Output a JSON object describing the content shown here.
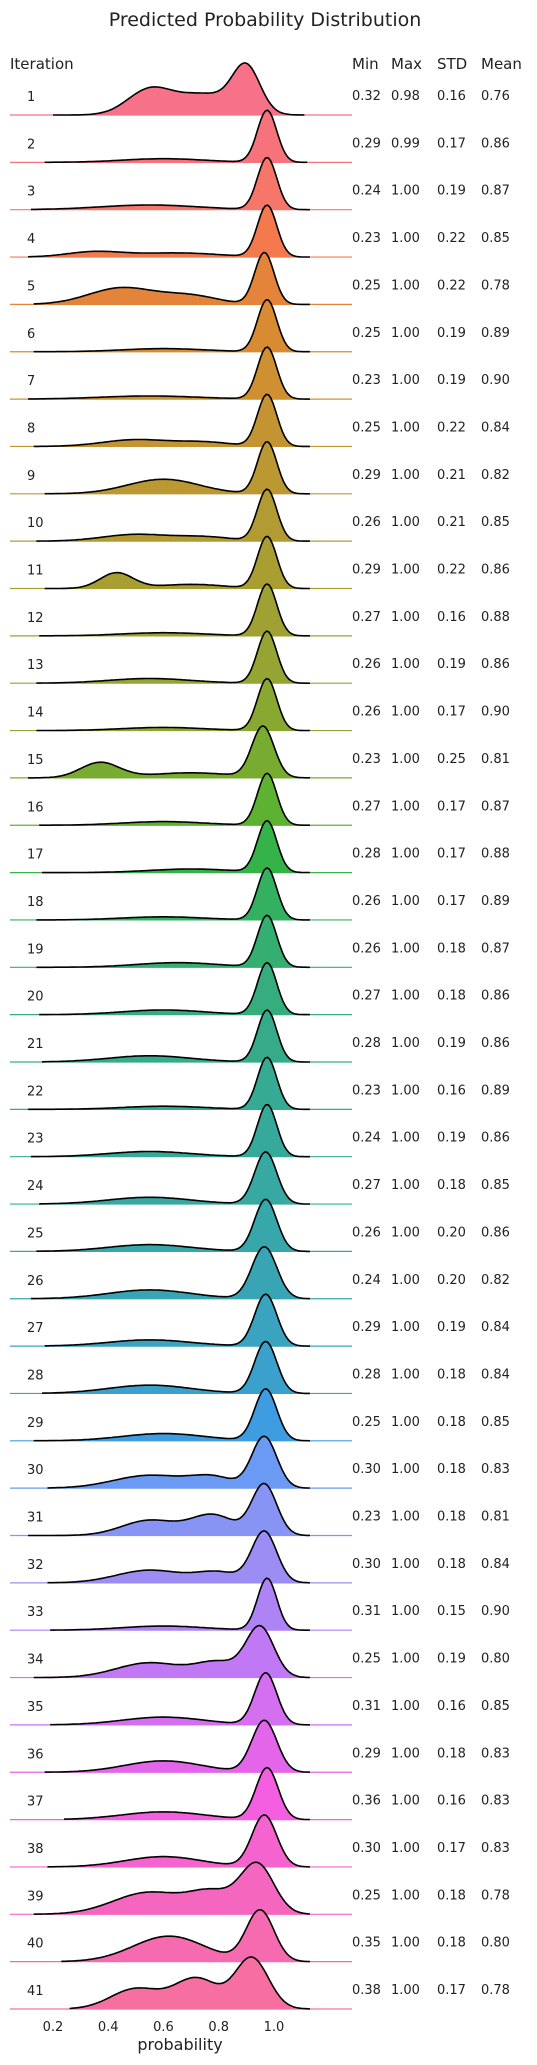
{
  "chart_data": {
    "type": "ridgeline",
    "title": "Predicted Probability Distribution",
    "xlabel": "probability",
    "xlim": [
      0.1,
      1.2
    ],
    "xticks": [
      "0.2",
      "0.4",
      "0.6",
      "0.8",
      "1.0"
    ],
    "xtick_values": [
      0.2,
      0.4,
      0.6,
      0.8,
      1.0
    ],
    "grid": false,
    "row_header": "Iteration",
    "stat_headers": [
      "Min",
      "Max",
      "STD",
      "Mean"
    ],
    "series": [
      {
        "label": "1",
        "color": "#f77189",
        "stats": [
          "0.32",
          "0.98",
          "0.16",
          "0.76"
        ]
      },
      {
        "label": "2",
        "color": "#f7737c",
        "stats": [
          "0.29",
          "0.99",
          "0.17",
          "0.86"
        ]
      },
      {
        "label": "3",
        "color": "#f7766a",
        "stats": [
          "0.24",
          "1.00",
          "0.19",
          "0.87"
        ]
      },
      {
        "label": "4",
        "color": "#f47a4e",
        "stats": [
          "0.23",
          "1.00",
          "0.22",
          "0.85"
        ]
      },
      {
        "label": "5",
        "color": "#e4843a",
        "stats": [
          "0.25",
          "1.00",
          "0.22",
          "0.78"
        ]
      },
      {
        "label": "6",
        "color": "#d98b33",
        "stats": [
          "0.25",
          "1.00",
          "0.19",
          "0.89"
        ]
      },
      {
        "label": "7",
        "color": "#cf9032",
        "stats": [
          "0.23",
          "1.00",
          "0.19",
          "0.90"
        ]
      },
      {
        "label": "8",
        "color": "#c59432",
        "stats": [
          "0.25",
          "1.00",
          "0.22",
          "0.84"
        ]
      },
      {
        "label": "9",
        "color": "#bb9832",
        "stats": [
          "0.29",
          "1.00",
          "0.21",
          "0.82"
        ]
      },
      {
        "label": "10",
        "color": "#b29b32",
        "stats": [
          "0.26",
          "1.00",
          "0.21",
          "0.85"
        ]
      },
      {
        "label": "11",
        "color": "#a99e32",
        "stats": [
          "0.29",
          "1.00",
          "0.22",
          "0.86"
        ]
      },
      {
        "label": "12",
        "color": "#9fa132",
        "stats": [
          "0.27",
          "1.00",
          "0.16",
          "0.88"
        ]
      },
      {
        "label": "13",
        "color": "#95a432",
        "stats": [
          "0.26",
          "1.00",
          "0.19",
          "0.86"
        ]
      },
      {
        "label": "14",
        "color": "#89a832",
        "stats": [
          "0.26",
          "1.00",
          "0.17",
          "0.90"
        ]
      },
      {
        "label": "15",
        "color": "#78ac31",
        "stats": [
          "0.23",
          "1.00",
          "0.25",
          "0.81"
        ]
      },
      {
        "label": "16",
        "color": "#5db232",
        "stats": [
          "0.27",
          "1.00",
          "0.17",
          "0.87"
        ]
      },
      {
        "label": "17",
        "color": "#35b248",
        "stats": [
          "0.28",
          "1.00",
          "0.17",
          "0.88"
        ]
      },
      {
        "label": "18",
        "color": "#34b061",
        "stats": [
          "0.26",
          "1.00",
          "0.17",
          "0.89"
        ]
      },
      {
        "label": "19",
        "color": "#35ae72",
        "stats": [
          "0.26",
          "1.00",
          "0.18",
          "0.87"
        ]
      },
      {
        "label": "20",
        "color": "#35ad7e",
        "stats": [
          "0.27",
          "1.00",
          "0.18",
          "0.86"
        ]
      },
      {
        "label": "21",
        "color": "#36ab89",
        "stats": [
          "0.28",
          "1.00",
          "0.19",
          "0.86"
        ]
      },
      {
        "label": "22",
        "color": "#36aa92",
        "stats": [
          "0.23",
          "1.00",
          "0.16",
          "0.89"
        ]
      },
      {
        "label": "23",
        "color": "#37a99a",
        "stats": [
          "0.24",
          "1.00",
          "0.19",
          "0.86"
        ]
      },
      {
        "label": "24",
        "color": "#38a8a2",
        "stats": [
          "0.27",
          "1.00",
          "0.18",
          "0.85"
        ]
      },
      {
        "label": "25",
        "color": "#38a7ab",
        "stats": [
          "0.26",
          "1.00",
          "0.20",
          "0.86"
        ]
      },
      {
        "label": "26",
        "color": "#39a5b4",
        "stats": [
          "0.24",
          "1.00",
          "0.20",
          "0.82"
        ]
      },
      {
        "label": "27",
        "color": "#3aa3bf",
        "stats": [
          "0.29",
          "1.00",
          "0.19",
          "0.84"
        ]
      },
      {
        "label": "28",
        "color": "#3ba1cc",
        "stats": [
          "0.28",
          "1.00",
          "0.18",
          "0.84"
        ]
      },
      {
        "label": "29",
        "color": "#3d9de0",
        "stats": [
          "0.25",
          "1.00",
          "0.18",
          "0.85"
        ]
      },
      {
        "label": "30",
        "color": "#6a9af4",
        "stats": [
          "0.30",
          "1.00",
          "0.18",
          "0.83"
        ]
      },
      {
        "label": "31",
        "color": "#8794f4",
        "stats": [
          "0.23",
          "1.00",
          "0.18",
          "0.81"
        ]
      },
      {
        "label": "32",
        "color": "#9b8df4",
        "stats": [
          "0.30",
          "1.00",
          "0.18",
          "0.84"
        ]
      },
      {
        "label": "33",
        "color": "#ae84f4",
        "stats": [
          "0.31",
          "1.00",
          "0.15",
          "0.90"
        ]
      },
      {
        "label": "34",
        "color": "#c178f4",
        "stats": [
          "0.25",
          "1.00",
          "0.19",
          "0.80"
        ]
      },
      {
        "label": "35",
        "color": "#d46ff0",
        "stats": [
          "0.31",
          "1.00",
          "0.16",
          "0.85"
        ]
      },
      {
        "label": "36",
        "color": "#e366ea",
        "stats": [
          "0.29",
          "1.00",
          "0.18",
          "0.83"
        ]
      },
      {
        "label": "37",
        "color": "#f45fe2",
        "stats": [
          "0.36",
          "1.00",
          "0.16",
          "0.83"
        ]
      },
      {
        "label": "38",
        "color": "#f563cf",
        "stats": [
          "0.30",
          "1.00",
          "0.17",
          "0.83"
        ]
      },
      {
        "label": "39",
        "color": "#f567bf",
        "stats": [
          "0.25",
          "1.00",
          "0.18",
          "0.78"
        ]
      },
      {
        "label": "40",
        "color": "#f66bb0",
        "stats": [
          "0.35",
          "1.00",
          "0.18",
          "0.80"
        ]
      },
      {
        "label": "41",
        "color": "#f66fa0",
        "stats": [
          "0.38",
          "1.00",
          "0.17",
          "0.78"
        ]
      }
    ]
  }
}
